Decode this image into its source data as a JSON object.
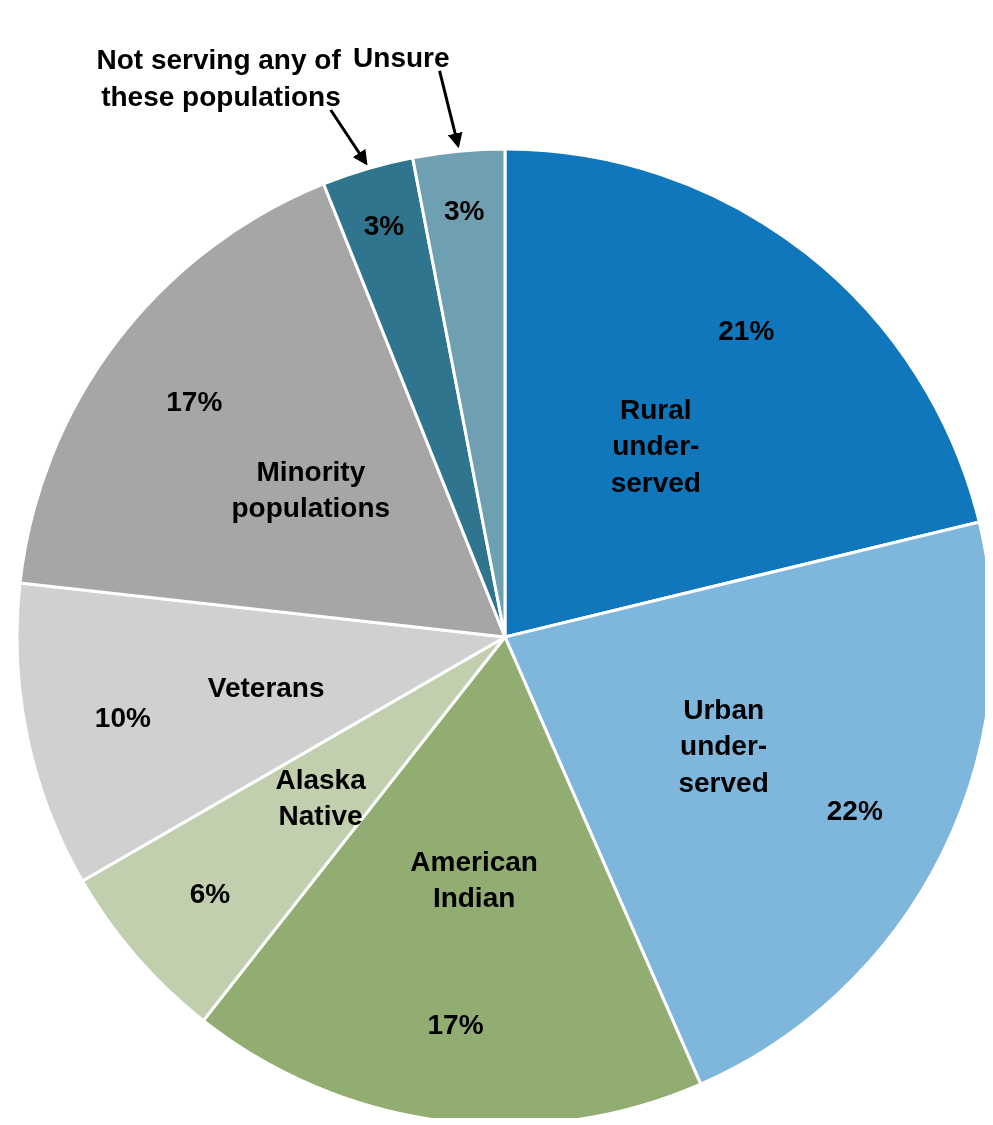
{
  "chart_data": {
    "type": "pie",
    "categories": [
      "Rural\nunder-\nserved",
      "Urban\nunder-\nserved",
      "American\nIndian",
      "Alaska\nNative",
      "Veterans",
      "Minority\npopulations",
      "Not serving any of\nthese populations",
      "Unsure"
    ],
    "values": [
      21,
      22,
      17,
      6,
      10,
      17,
      3,
      3
    ],
    "value_labels": [
      "21%",
      "22%",
      "17%",
      "6%",
      "10%",
      "17%",
      "3%",
      "3%"
    ],
    "colors": [
      "#1177bd",
      "#7fb6dc",
      "#92ad71",
      "#c1cfaf",
      "#d0d0d0",
      "#a6a6a6",
      "#2e758d",
      "#6fa0b1"
    ],
    "legend": false
  }
}
